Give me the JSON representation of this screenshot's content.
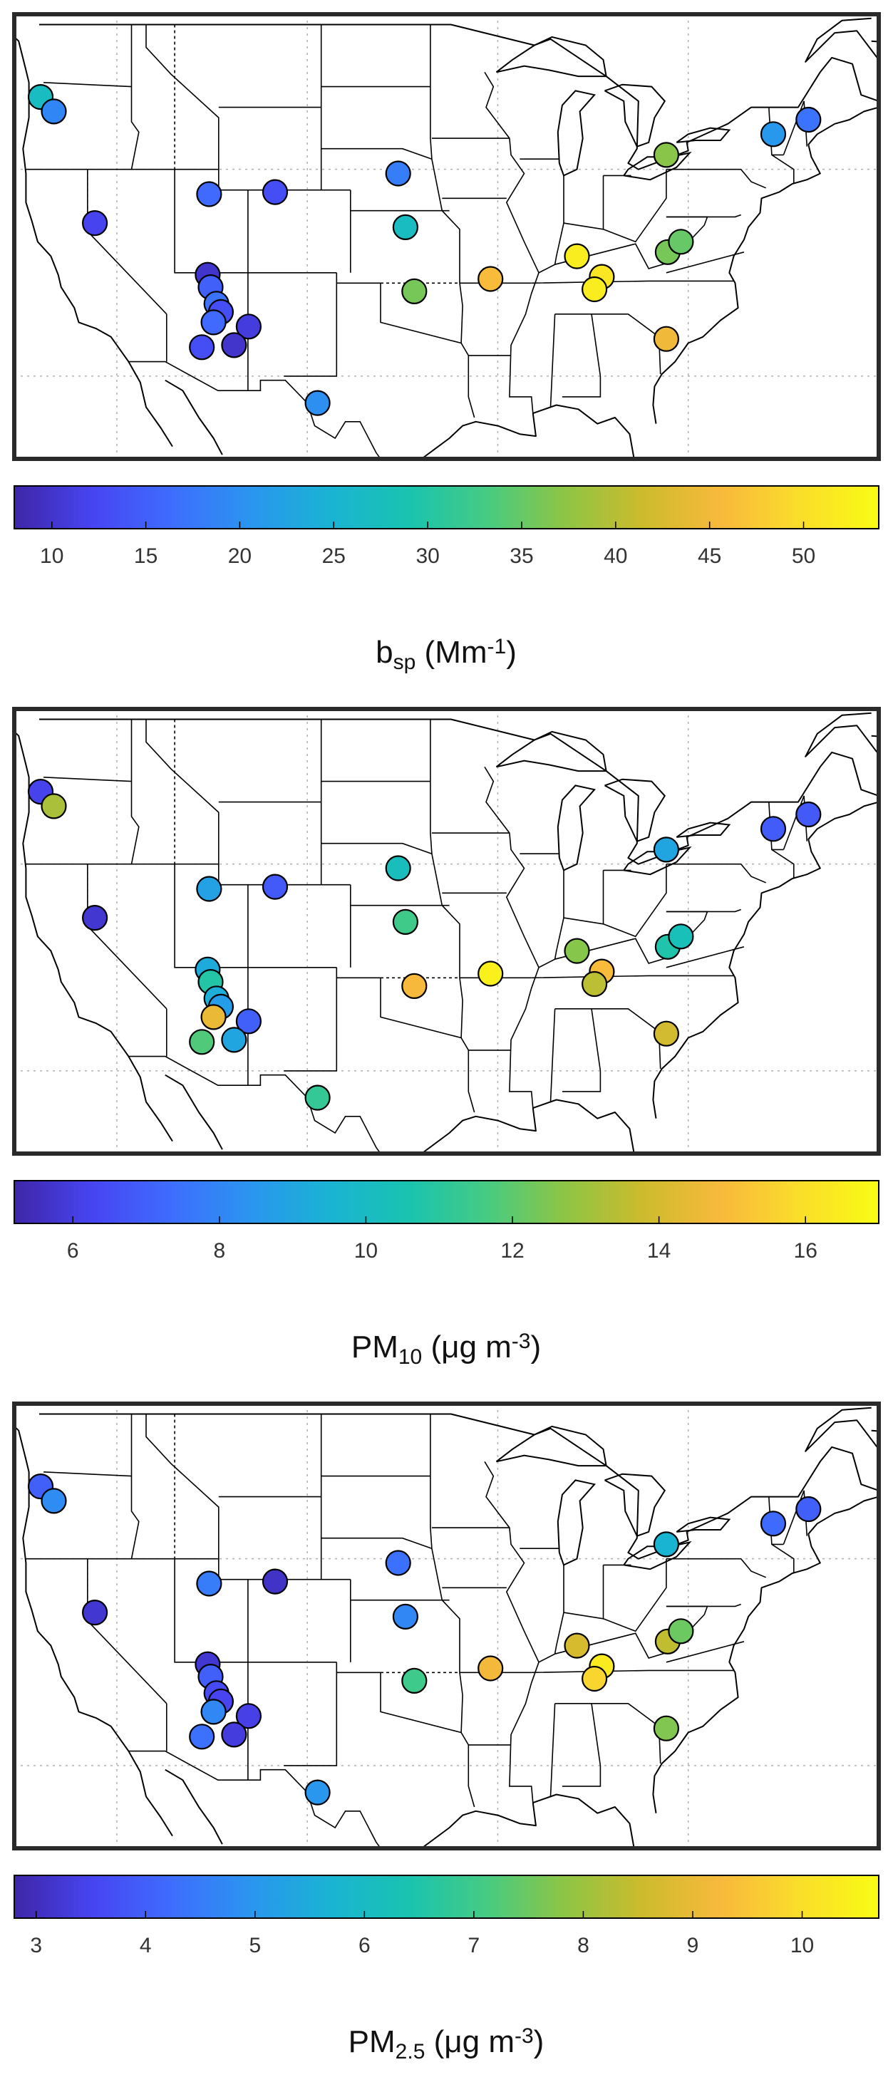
{
  "chart_data": [
    {
      "type": "scatter",
      "colorbar": {
        "label_main": "b",
        "label_sub": "sp",
        "label_rest": " (Mm",
        "label_sup": "-1",
        "label_close": ")",
        "range": [
          8,
          54
        ],
        "ticks": [
          "10",
          "15",
          "20",
          "25",
          "30",
          "35",
          "40",
          "45",
          "50"
        ]
      },
      "points": [
        {
          "lon": -123.2,
          "lat": 45.5,
          "value": 27
        },
        {
          "lon": -122.3,
          "lat": 44.8,
          "value": 19
        },
        {
          "lon": -119.5,
          "lat": 39.4,
          "value": 12
        },
        {
          "lon": -111.7,
          "lat": 40.8,
          "value": 16
        },
        {
          "lon": -107.2,
          "lat": 40.9,
          "value": 13
        },
        {
          "lon": -98.8,
          "lat": 41.8,
          "value": 18
        },
        {
          "lon": -98.3,
          "lat": 39.2,
          "value": 27
        },
        {
          "lon": -111.8,
          "lat": 36.9,
          "value": 10
        },
        {
          "lon": -111.6,
          "lat": 36.3,
          "value": 15
        },
        {
          "lon": -111.2,
          "lat": 35.5,
          "value": 17
        },
        {
          "lon": -110.9,
          "lat": 35.1,
          "value": 13
        },
        {
          "lon": -111.4,
          "lat": 34.6,
          "value": 16
        },
        {
          "lon": -109.0,
          "lat": 34.4,
          "value": 11
        },
        {
          "lon": -112.2,
          "lat": 33.4,
          "value": 13
        },
        {
          "lon": -110.0,
          "lat": 33.5,
          "value": 10
        },
        {
          "lon": -104.3,
          "lat": 30.7,
          "value": 20
        },
        {
          "lon": -97.7,
          "lat": 36.1,
          "value": 36
        },
        {
          "lon": -92.5,
          "lat": 36.7,
          "value": 46
        },
        {
          "lon": -86.6,
          "lat": 37.8,
          "value": 52
        },
        {
          "lon": -84.9,
          "lat": 36.8,
          "value": 51
        },
        {
          "lon": -85.4,
          "lat": 36.2,
          "value": 52
        },
        {
          "lon": -80.5,
          "lat": 33.8,
          "value": 45
        },
        {
          "lon": -80.4,
          "lat": 38.0,
          "value": 36
        },
        {
          "lon": -79.5,
          "lat": 38.5,
          "value": 35
        },
        {
          "lon": -80.5,
          "lat": 42.7,
          "value": 37
        },
        {
          "lon": -73.2,
          "lat": 43.7,
          "value": 21
        },
        {
          "lon": -70.8,
          "lat": 44.4,
          "value": 17
        }
      ]
    },
    {
      "type": "scatter",
      "colorbar": {
        "label_main": "PM",
        "label_sub": "10",
        "label_rest": " (μg m",
        "label_sup": "-3",
        "label_close": ")",
        "range": [
          5.2,
          17.0
        ],
        "ticks": [
          "6",
          "8",
          "10",
          "12",
          "14",
          "16"
        ]
      },
      "points": [
        {
          "lon": -123.2,
          "lat": 45.5,
          "value": 6.2
        },
        {
          "lon": -122.3,
          "lat": 44.8,
          "value": 13.2
        },
        {
          "lon": -119.5,
          "lat": 39.4,
          "value": 5.8
        },
        {
          "lon": -111.7,
          "lat": 40.8,
          "value": 8.8
        },
        {
          "lon": -107.2,
          "lat": 40.9,
          "value": 6.8
        },
        {
          "lon": -98.8,
          "lat": 41.8,
          "value": 10.2
        },
        {
          "lon": -98.3,
          "lat": 39.2,
          "value": 11.5
        },
        {
          "lon": -111.8,
          "lat": 36.9,
          "value": 9.2
        },
        {
          "lon": -111.6,
          "lat": 36.3,
          "value": 10.8
        },
        {
          "lon": -111.2,
          "lat": 35.5,
          "value": 9.3
        },
        {
          "lon": -110.9,
          "lat": 35.1,
          "value": 8.7
        },
        {
          "lon": -111.4,
          "lat": 34.6,
          "value": 14.5
        },
        {
          "lon": -109.0,
          "lat": 34.4,
          "value": 7.0
        },
        {
          "lon": -112.2,
          "lat": 33.4,
          "value": 11.8
        },
        {
          "lon": -110.0,
          "lat": 33.5,
          "value": 9.0
        },
        {
          "lon": -104.3,
          "lat": 30.7,
          "value": 11.2
        },
        {
          "lon": -97.7,
          "lat": 36.1,
          "value": 14.8
        },
        {
          "lon": -92.5,
          "lat": 36.7,
          "value": 16.6
        },
        {
          "lon": -86.6,
          "lat": 37.8,
          "value": 12.6
        },
        {
          "lon": -84.9,
          "lat": 36.8,
          "value": 14.9
        },
        {
          "lon": -85.4,
          "lat": 36.2,
          "value": 13.5
        },
        {
          "lon": -80.5,
          "lat": 33.8,
          "value": 13.9
        },
        {
          "lon": -80.4,
          "lat": 38.0,
          "value": 10.7
        },
        {
          "lon": -79.5,
          "lat": 38.5,
          "value": 10.3
        },
        {
          "lon": -80.5,
          "lat": 42.7,
          "value": 9.0
        },
        {
          "lon": -73.2,
          "lat": 43.7,
          "value": 6.9
        },
        {
          "lon": -70.8,
          "lat": 44.4,
          "value": 6.8
        }
      ]
    },
    {
      "type": "scatter",
      "colorbar": {
        "label_main": "PM",
        "label_sub": "2.5",
        "label_rest": " (μg m",
        "label_sup": "-3",
        "label_close": ")",
        "range": [
          2.8,
          10.7
        ],
        "ticks": [
          "3",
          "4",
          "5",
          "6",
          "7",
          "8",
          "9",
          "10"
        ]
      },
      "points": [
        {
          "lon": -123.2,
          "lat": 45.5,
          "value": 4.0
        },
        {
          "lon": -122.3,
          "lat": 44.8,
          "value": 4.8
        },
        {
          "lon": -119.5,
          "lat": 39.4,
          "value": 3.2
        },
        {
          "lon": -111.7,
          "lat": 40.8,
          "value": 4.5
        },
        {
          "lon": -107.2,
          "lat": 40.9,
          "value": 3.1
        },
        {
          "lon": -98.8,
          "lat": 41.8,
          "value": 4.3
        },
        {
          "lon": -98.3,
          "lat": 39.2,
          "value": 4.7
        },
        {
          "lon": -111.8,
          "lat": 36.9,
          "value": 3.2
        },
        {
          "lon": -111.6,
          "lat": 36.3,
          "value": 4.0
        },
        {
          "lon": -111.2,
          "lat": 35.5,
          "value": 3.6
        },
        {
          "lon": -110.9,
          "lat": 35.1,
          "value": 3.5
        },
        {
          "lon": -111.4,
          "lat": 34.6,
          "value": 4.7
        },
        {
          "lon": -109.0,
          "lat": 34.4,
          "value": 3.4
        },
        {
          "lon": -112.2,
          "lat": 33.4,
          "value": 4.3
        },
        {
          "lon": -110.0,
          "lat": 33.5,
          "value": 3.3
        },
        {
          "lon": -104.3,
          "lat": 30.7,
          "value": 5.0
        },
        {
          "lon": -97.7,
          "lat": 36.1,
          "value": 7.0
        },
        {
          "lon": -92.5,
          "lat": 36.7,
          "value": 9.2
        },
        {
          "lon": -86.6,
          "lat": 37.8,
          "value": 8.7
        },
        {
          "lon": -84.9,
          "lat": 36.8,
          "value": 10.3
        },
        {
          "lon": -85.4,
          "lat": 36.2,
          "value": 9.8
        },
        {
          "lon": -80.5,
          "lat": 33.8,
          "value": 7.7
        },
        {
          "lon": -80.4,
          "lat": 38.0,
          "value": 8.4
        },
        {
          "lon": -79.5,
          "lat": 38.5,
          "value": 7.5
        },
        {
          "lon": -80.5,
          "lat": 42.7,
          "value": 5.7
        },
        {
          "lon": -73.2,
          "lat": 43.7,
          "value": 4.2
        },
        {
          "lon": -70.8,
          "lat": 44.4,
          "value": 4.0
        }
      ]
    }
  ],
  "colormap": [
    "#3e26a8",
    "#4745f2",
    "#3e6dfe",
    "#2a95ef",
    "#1ab3d4",
    "#19c3b0",
    "#45cb83",
    "#8dc545",
    "#cdbb2c",
    "#f8b93c",
    "#fade2a",
    "#f9fb14"
  ],
  "map": {
    "lon_range": [
      -125,
      -66
    ],
    "lat_range": [
      28,
      49.5
    ],
    "grid_lons": [
      -118,
      -105,
      -92,
      -79
    ],
    "grid_lats": [
      32,
      42
    ]
  }
}
